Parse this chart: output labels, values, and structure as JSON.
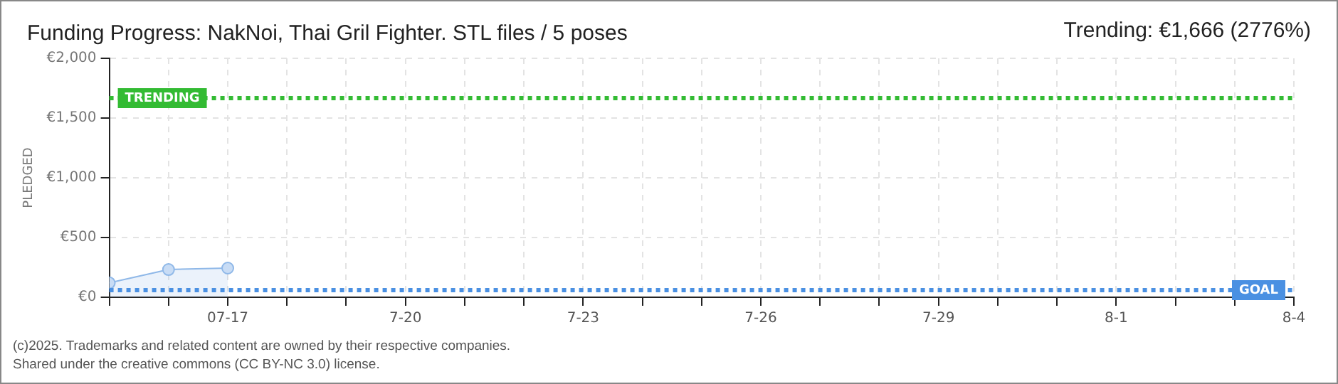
{
  "chart_data": {
    "type": "area",
    "title": "Funding Progress: NakNoi, Thai Gril Fighter. STL files / 5 poses",
    "ylabel": "PLEDGED",
    "x": [
      "--07-15",
      "--07-16",
      "--07-17"
    ],
    "series": [
      {
        "color": "#8fb8e8",
        "values": [
          120,
          232,
          244
        ]
      }
    ],
    "marker": "circle",
    "line_style": "solid",
    "grid": true,
    "legend": false,
    "xlim": [
      "--07-15",
      "--08-04"
    ],
    "xticks": [
      {
        "value": "--07-15",
        "label": null
      },
      {
        "value": "--07-16",
        "label": null
      },
      {
        "value": "--07-17",
        "label": "07-17"
      },
      {
        "value": "--07-18",
        "label": null
      },
      {
        "value": "--07-19",
        "label": null
      },
      {
        "value": "--07-20",
        "label": "7-20"
      },
      {
        "value": "--07-21",
        "label": null
      },
      {
        "value": "--07-22",
        "label": null
      },
      {
        "value": "--07-23",
        "label": "7-23"
      },
      {
        "value": "--07-24",
        "label": null
      },
      {
        "value": "--07-25",
        "label": null
      },
      {
        "value": "--07-26",
        "label": "7-26"
      },
      {
        "value": "--07-27",
        "label": null
      },
      {
        "value": "--07-28",
        "label": null
      },
      {
        "value": "--07-29",
        "label": "7-29"
      },
      {
        "value": "--07-30",
        "label": null
      },
      {
        "value": "--07-31",
        "label": null
      },
      {
        "value": "--08-01",
        "label": "8-1"
      },
      {
        "value": "--08-02",
        "label": null
      },
      {
        "value": "--08-03",
        "label": null
      },
      {
        "value": "--08-04",
        "label": "8-4"
      }
    ],
    "ylim": [
      0,
      2000
    ],
    "yticks": [
      {
        "value": 0,
        "label": "€0"
      },
      {
        "value": 500,
        "label": "€500"
      },
      {
        "value": 1000,
        "label": "€1,000"
      },
      {
        "value": 1500,
        "label": "€1,500"
      },
      {
        "value": 2000,
        "label": "€2,000"
      }
    ],
    "ref_lines": [
      {
        "axis": "y",
        "value": 1666,
        "label": "TRENDING",
        "color": "#33bb33",
        "line_style": "dotted"
      },
      {
        "axis": "y",
        "value": 60,
        "label": "GOAL",
        "color": "#4a90e2",
        "line_style": "dotted"
      }
    ],
    "annotations": [
      "Trending: €1,666 (2776%)",
      "(c)2025. Trademarks and related content are owned by their respective companies.",
      "Shared under the creative commons (CC BY-NC 3.0) license."
    ]
  }
}
